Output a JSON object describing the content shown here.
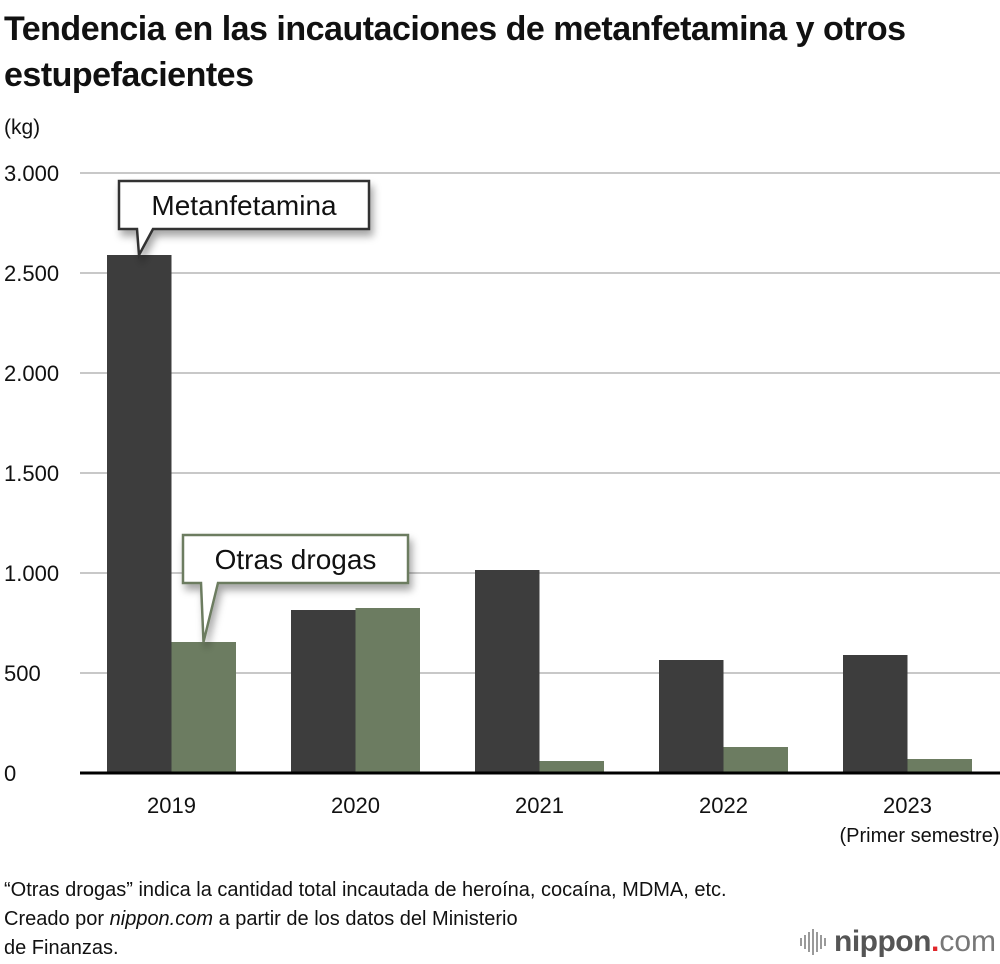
{
  "chart_data": {
    "type": "bar",
    "title": "Tendencia en las incautaciones de metanfetamina y otros estupefacientes",
    "ylabel": "(kg)",
    "xlabel": "",
    "ylim": [
      0,
      3000
    ],
    "yticks": [
      0,
      500,
      1000,
      1500,
      2000,
      2500,
      3000
    ],
    "ytick_labels": [
      "0",
      "500",
      "1.000",
      "1.500",
      "2.000",
      "2.500",
      "3.000"
    ],
    "grid": true,
    "categories": [
      "2019",
      "2020",
      "2021",
      "2022",
      "2023"
    ],
    "category_sublabels": [
      "",
      "",
      "",
      "",
      "(Primer semestre)"
    ],
    "series": [
      {
        "name": "Metanfetamina",
        "color": "#3d3d3d",
        "values": [
          2590,
          815,
          1015,
          565,
          590
        ]
      },
      {
        "name": "Otras drogas",
        "color": "#6c7c61",
        "values": [
          655,
          825,
          60,
          130,
          70
        ]
      }
    ],
    "annotations": [
      {
        "text": "Metanfetamina",
        "series": 0,
        "category": "2019"
      },
      {
        "text": "Otras drogas",
        "series": 1,
        "category": "2019"
      }
    ]
  },
  "header": {
    "title": "Tendencia en las incautaciones de metanfetamina y otros estupefacientes",
    "unit": "(kg)"
  },
  "footer": {
    "note": "“Otras drogas” indica la cantidad total incautada de heroína, cocaína, MDMA, etc.",
    "credit_prefix": "Creado por ",
    "credit_source": "nippon.com",
    "credit_suffix": " a partir de los datos del Ministerio",
    "credit_line2": "de Finanzas.",
    "logo_name": "nippon",
    "logo_dot": ".",
    "logo_tld": "com"
  }
}
